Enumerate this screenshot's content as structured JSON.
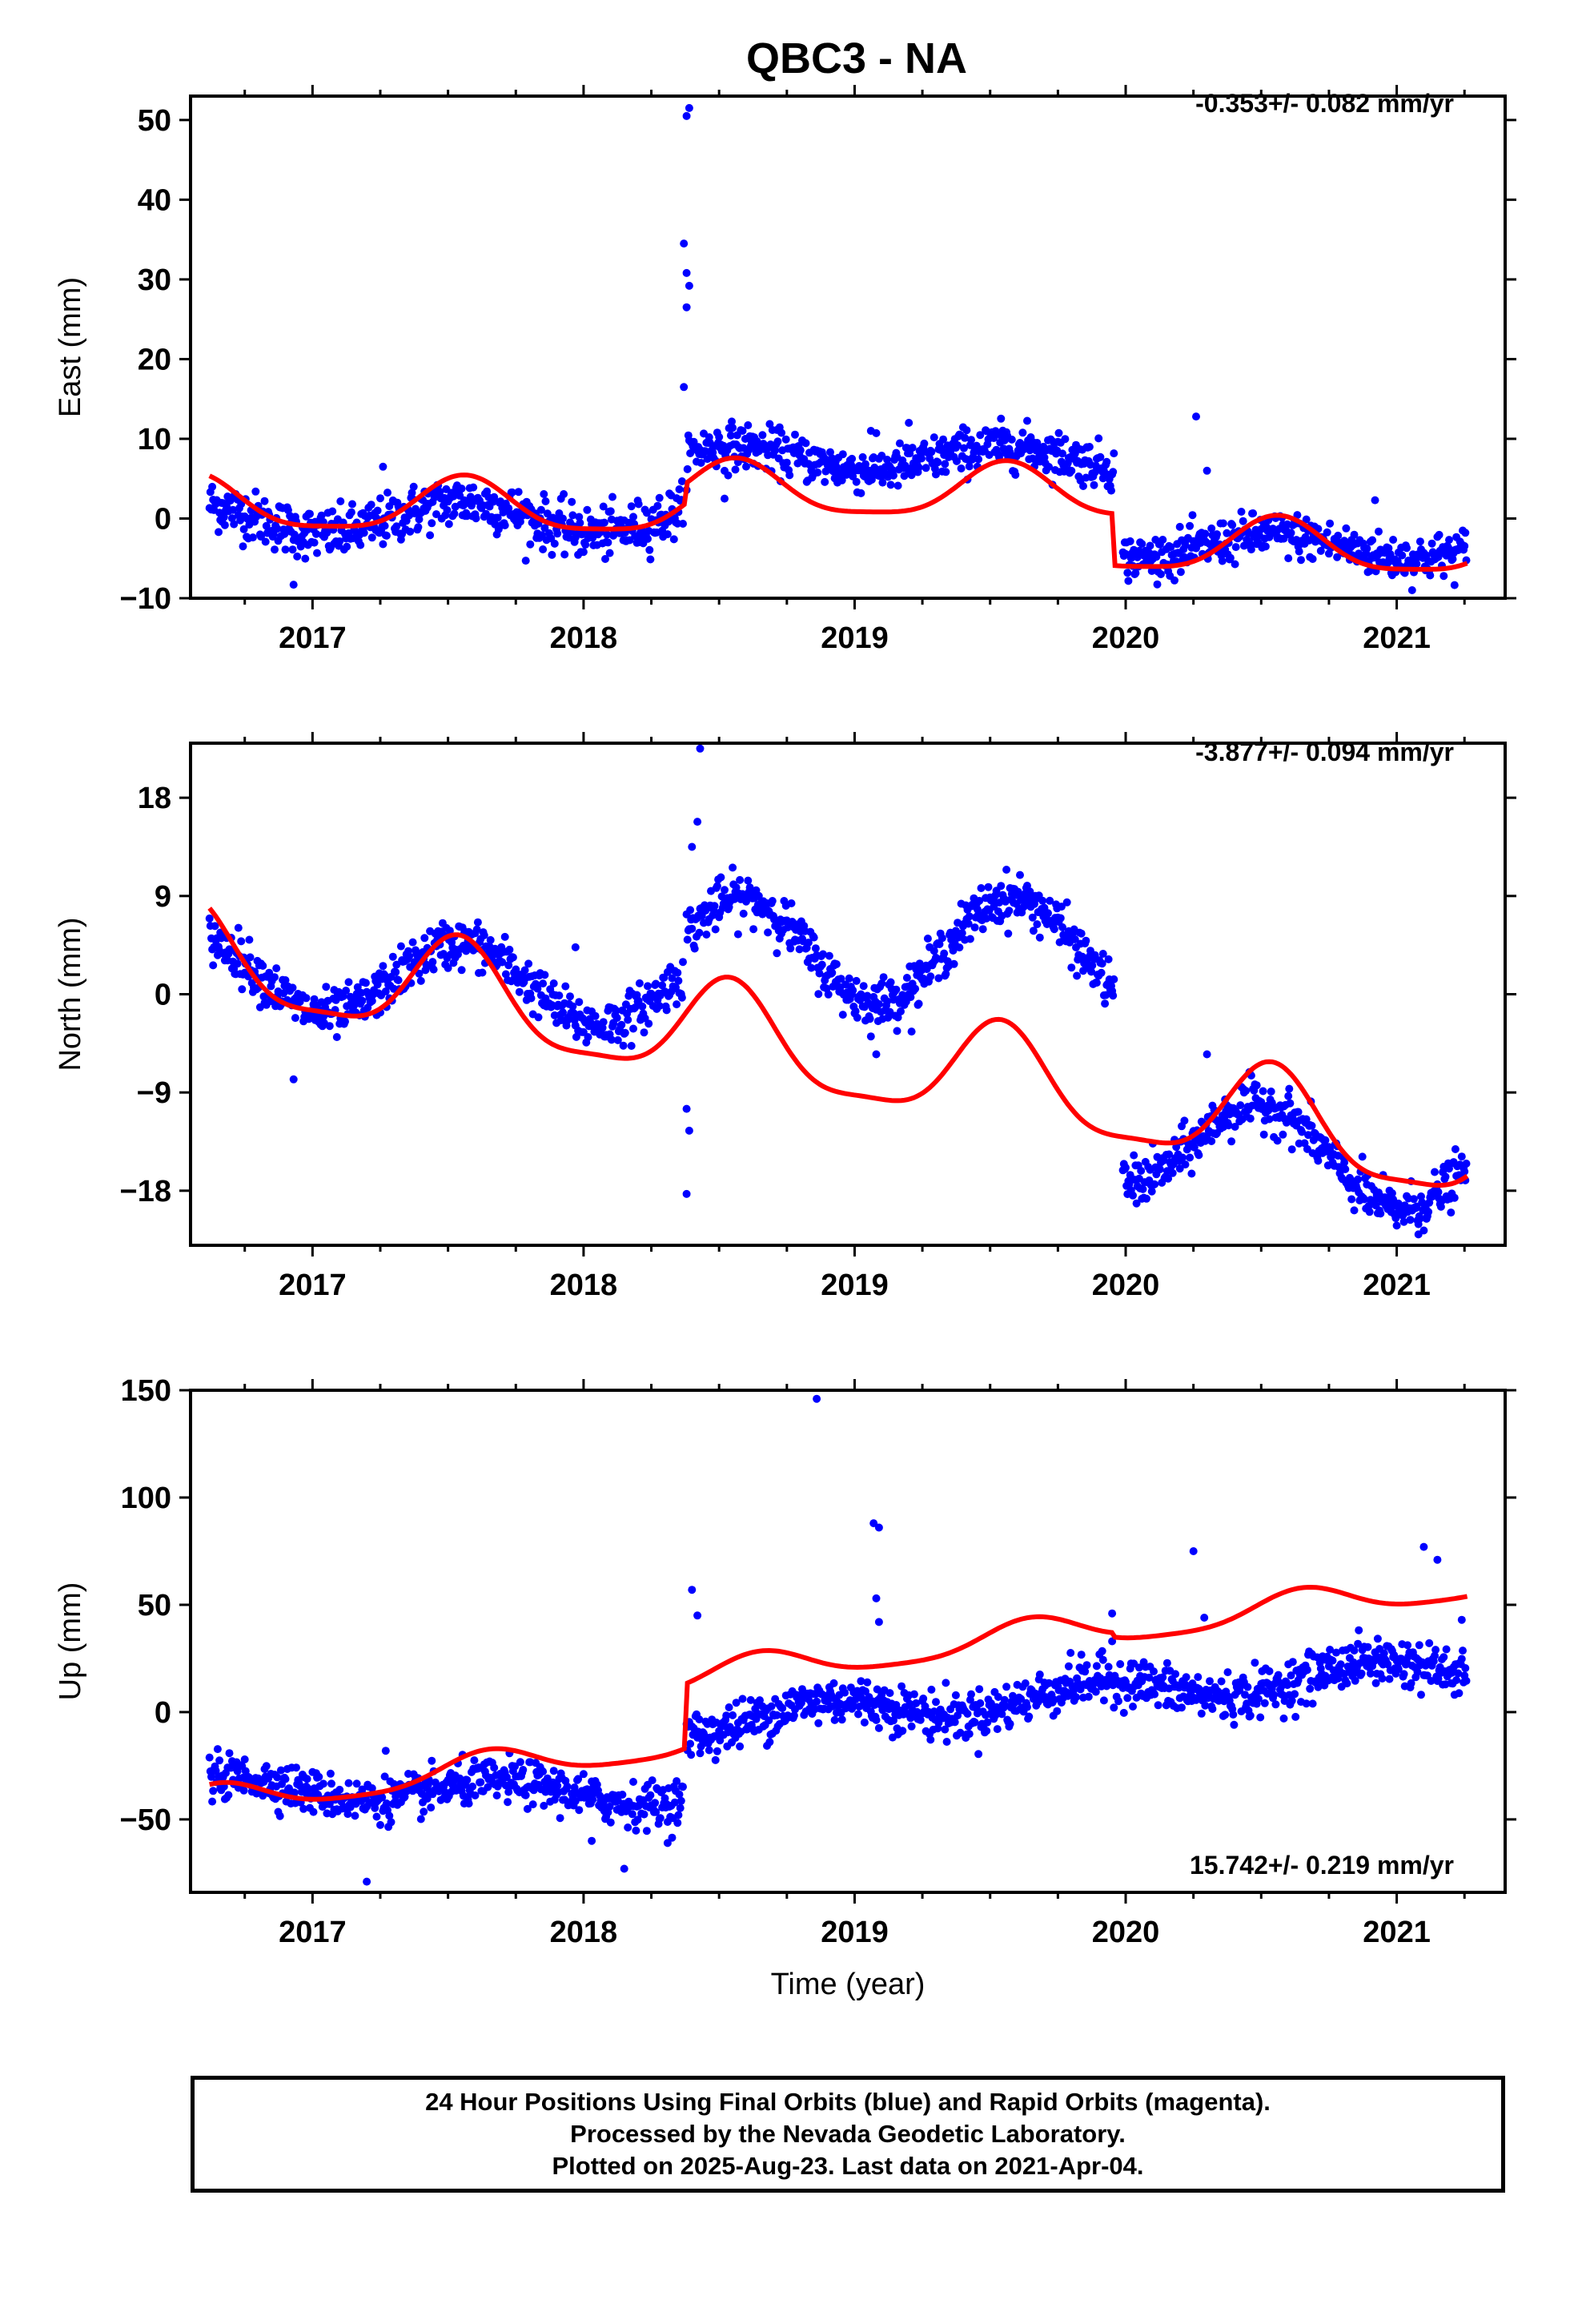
{
  "title": "QBC3 - NA",
  "xlabel": "Time (year)",
  "x_ticks": [
    "2017",
    "2018",
    "2019",
    "2020",
    "2021"
  ],
  "colors": {
    "final": "#0000ff",
    "model": "#ff0000",
    "frame": "#000000"
  },
  "caption": [
    "24 Hour Positions Using Final Orbits (blue) and Rapid Orbits (magenta).",
    "Processed by the Nevada Geodetic Laboratory.",
    "Plotted on 2025-Aug-23. Last data on 2021-Apr-04."
  ],
  "chart_data": [
    {
      "type": "scatter",
      "panel": "east",
      "ylabel": "East (mm)",
      "rate_label": "-0.353+/- 0.082 mm/yr",
      "xlim": [
        2016.55,
        2021.4
      ],
      "ylim": [
        -10,
        53
      ],
      "yticks": [
        -10,
        0,
        10,
        20,
        30,
        40,
        50
      ],
      "ytick_labels": [
        "−10",
        "0",
        "10",
        "20",
        "30",
        "40",
        "50"
      ],
      "segments": [
        {
          "x0": 2016.62,
          "x1": 2018.37,
          "base": 0.0,
          "slope": 0.1,
          "amp": 2.0,
          "phase": 2017.55,
          "noise": 1.6
        },
        {
          "x0": 2018.38,
          "x1": 2019.96,
          "base": 7.6,
          "slope": 0.0,
          "amp": 1.5,
          "phase": 2017.55,
          "noise": 1.4
        },
        {
          "x0": 2019.99,
          "x1": 2021.26,
          "base": -3.5,
          "slope": 0.0,
          "amp": 1.5,
          "phase": 2020.55,
          "noise": 1.4
        }
      ],
      "outliers": [
        [
          2018.38,
          50.5
        ],
        [
          2018.39,
          51.5
        ],
        [
          2018.37,
          34.5
        ],
        [
          2018.38,
          30.8
        ],
        [
          2018.39,
          29.2
        ],
        [
          2018.38,
          26.5
        ],
        [
          2018.37,
          16.5
        ],
        [
          2020.26,
          12.8
        ],
        [
          2020.3,
          6.0
        ],
        [
          2016.93,
          -8.3
        ],
        [
          2019.06,
          11.0
        ],
        [
          2017.26,
          6.5
        ],
        [
          2020.92,
          2.3
        ],
        [
          2019.2,
          12.0
        ],
        [
          2018.52,
          2.5
        ]
      ],
      "model": {
        "x0": 2016.62,
        "x1": 2021.26,
        "base": 1.7,
        "slope": -0.353,
        "amp": 3.3,
        "phase": 2017.56,
        "amp2": 0.8,
        "offsets": [
          [
            2018.38,
            2.5
          ],
          [
            2019.96,
            -6.5
          ]
        ]
      }
    },
    {
      "type": "scatter",
      "panel": "north",
      "ylabel": "North (mm)",
      "rate_label": "-3.877+/- 0.094 mm/yr",
      "xlim": [
        2016.55,
        2021.4
      ],
      "ylim": [
        -23,
        23
      ],
      "yticks": [
        -18,
        -9,
        0,
        9,
        18
      ],
      "ytick_labels": [
        "−18",
        "−9",
        "0",
        "9",
        "18"
      ],
      "segments": [
        {
          "x0": 2016.62,
          "x1": 2018.37,
          "base": 2.0,
          "slope": -0.9,
          "amp": 3.5,
          "phase": 2017.55,
          "noise": 1.1
        },
        {
          "x0": 2018.38,
          "x1": 2019.96,
          "base": 4.0,
          "slope": 0.0,
          "amp": 4.8,
          "phase": 2017.58,
          "noise": 1.1
        },
        {
          "x0": 2019.99,
          "x1": 2021.26,
          "base": -13.0,
          "slope": -2.5,
          "amp": 4.2,
          "phase": 2020.5,
          "noise": 1.1
        }
      ],
      "outliers": [
        [
          2018.38,
          -18.3
        ],
        [
          2018.39,
          -12.5
        ],
        [
          2018.38,
          -10.5
        ],
        [
          2018.4,
          13.5
        ],
        [
          2018.42,
          15.8
        ],
        [
          2018.43,
          22.5
        ],
        [
          2016.93,
          -7.8
        ],
        [
          2017.97,
          4.3
        ],
        [
          2019.08,
          -5.5
        ],
        [
          2020.3,
          -5.5
        ],
        [
          2021.08,
          -22.0
        ]
      ],
      "model": {
        "x0": 2016.62,
        "x1": 2021.26,
        "base": 3.3,
        "slope": -3.877,
        "amp": 4.5,
        "phase": 2017.54,
        "amp2": 1.2,
        "offsets": []
      }
    },
    {
      "type": "scatter",
      "panel": "up",
      "ylabel": "Up (mm)",
      "rate_label": "15.742+/- 0.219 mm/yr",
      "xlim": [
        2016.55,
        2021.4
      ],
      "ylim": [
        -84,
        150
      ],
      "yticks": [
        -50,
        0,
        50,
        100,
        150
      ],
      "ytick_labels": [
        "−50",
        "0",
        "50",
        "100",
        "150"
      ],
      "segments": [
        {
          "x0": 2016.62,
          "x1": 2018.37,
          "base": -35.0,
          "slope": -2.0,
          "amp": 5.0,
          "phase": 2017.7,
          "noise": 5.0
        },
        {
          "x0": 2018.38,
          "x1": 2021.26,
          "base": -5.0,
          "slope": 9.0,
          "amp": 6.0,
          "phase": 2017.9,
          "noise": 5.5
        }
      ],
      "outliers": [
        [
          2018.86,
          146.0
        ],
        [
          2019.07,
          88.0
        ],
        [
          2019.09,
          86.0
        ],
        [
          2019.08,
          53.0
        ],
        [
          2019.09,
          42.0
        ],
        [
          2020.25,
          75.0
        ],
        [
          2020.29,
          44.0
        ],
        [
          2019.95,
          46.0
        ],
        [
          2021.1,
          77.0
        ],
        [
          2021.15,
          71.0
        ],
        [
          2021.24,
          43.0
        ],
        [
          2018.4,
          57.0
        ],
        [
          2018.42,
          45.0
        ],
        [
          2017.2,
          -79.0
        ],
        [
          2018.15,
          -73.0
        ],
        [
          2017.27,
          -18.0
        ],
        [
          2018.03,
          -60.0
        ],
        [
          2018.31,
          -61.0
        ],
        [
          2019.95,
          33.0
        ]
      ],
      "model": {
        "x0": 2016.62,
        "x1": 2021.26,
        "base": -42.0,
        "slope": 15.742,
        "amp": 7.0,
        "phase": 2017.65,
        "amp2": 1.5,
        "offsets": [
          [
            2018.38,
            30.0
          ],
          [
            2019.96,
            -2.0
          ]
        ]
      }
    }
  ]
}
